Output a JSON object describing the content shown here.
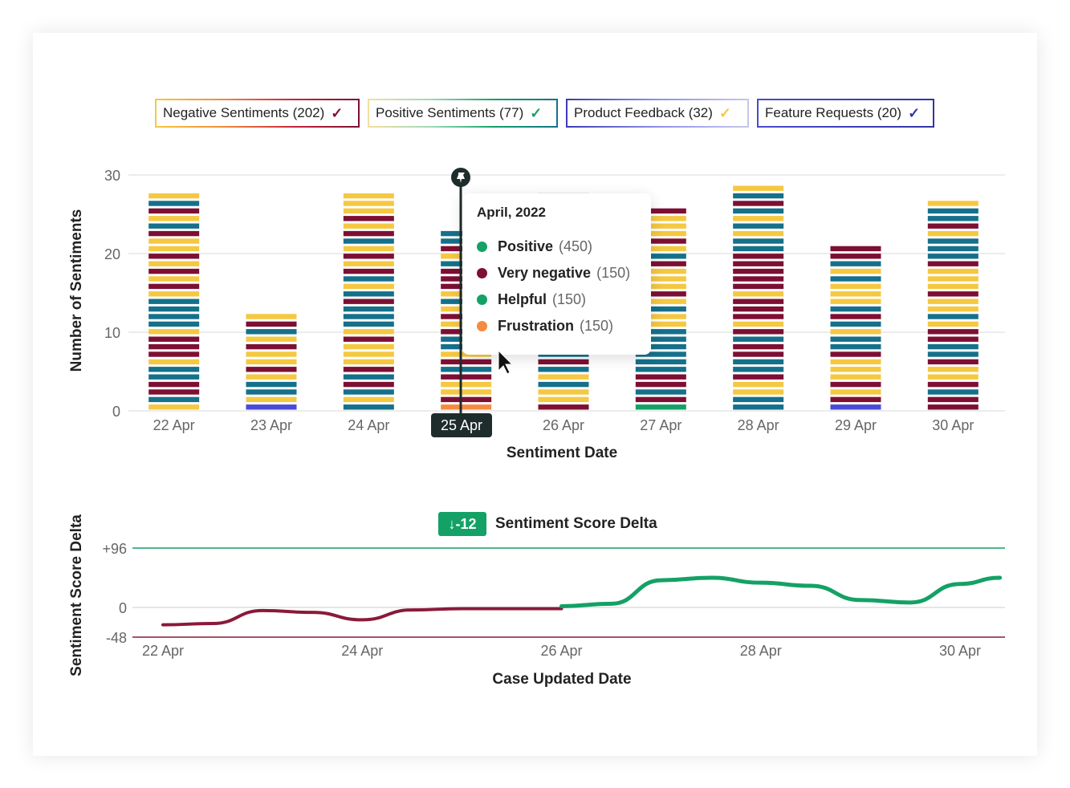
{
  "legend": [
    {
      "label": "Negative Sentiments (202)",
      "check": "✓",
      "check_color": "#7d0f33"
    },
    {
      "label": "Positive Sentiments (77)",
      "check": "✓",
      "check_color": "#14a166"
    },
    {
      "label": "Product Feedback (32)",
      "check": "✓",
      "check_color": "#f5c842"
    },
    {
      "label": "Feature Requests (20)",
      "check": "✓",
      "check_color": "#3434a6"
    }
  ],
  "colors": {
    "maroon": "#7d0f33",
    "green": "#14a166",
    "teal": "#15708a",
    "orange": "#f58a42",
    "yellow": "#f5c842",
    "purple": "#4a4ad6",
    "red_line": "#8a1a3a",
    "green_line": "#14a166"
  },
  "tooltip": {
    "title": "April, 2022",
    "rows": [
      {
        "label": "Positive",
        "count": "(450)",
        "color": "#14a166"
      },
      {
        "label": "Very negative",
        "count": "(150)",
        "color": "#7d0f33"
      },
      {
        "label": "Helpful",
        "count": "(150)",
        "color": "#14a166"
      },
      {
        "label": "Frustration",
        "count": "(150)",
        "color": "#f58a42"
      }
    ]
  },
  "selected_date": "25 Apr",
  "delta": {
    "badge": "↓-12",
    "title": "Sentiment Score Delta"
  },
  "chart_data": [
    {
      "type": "bar",
      "stacked": true,
      "categories": [
        "22 Apr",
        "23 Apr",
        "24 Apr",
        "25 Apr",
        "26 Apr",
        "27 Apr",
        "28 Apr",
        "29 Apr",
        "30 Apr"
      ],
      "values": [
        28,
        13,
        28,
        23,
        28,
        26,
        29,
        21.5,
        27
      ],
      "xlabel": "Sentiment Date",
      "ylabel": "Number of Sentiments",
      "ylim": [
        0,
        30
      ],
      "yticks": [
        0,
        10,
        20,
        30
      ],
      "grid": true
    },
    {
      "type": "line",
      "title": "Sentiment Score Delta",
      "xlabel": "Case Updated Date",
      "ylabel": "Sentiment Score Delta",
      "xticks": [
        "22 Apr",
        "24 Apr",
        "26 Apr",
        "28 Apr",
        "30 Apr"
      ],
      "yticks": [
        "+96",
        "0",
        "-48"
      ],
      "ylim": [
        -48,
        96
      ],
      "series": [
        {
          "x": [
            22.0,
            22.5,
            23.0,
            23.5,
            24.0,
            24.5,
            25.0,
            25.5,
            26.0
          ],
          "y": [
            -28,
            -26,
            -5,
            -8,
            -20,
            -4,
            -2,
            -2,
            -2
          ]
        },
        {
          "x": [
            26.0,
            26.5,
            27.0,
            27.5,
            28.0,
            28.5,
            29.0,
            29.5,
            30.0,
            30.4
          ],
          "y": [
            2,
            6,
            44,
            48,
            40,
            35,
            12,
            8,
            38,
            48
          ]
        }
      ]
    }
  ]
}
